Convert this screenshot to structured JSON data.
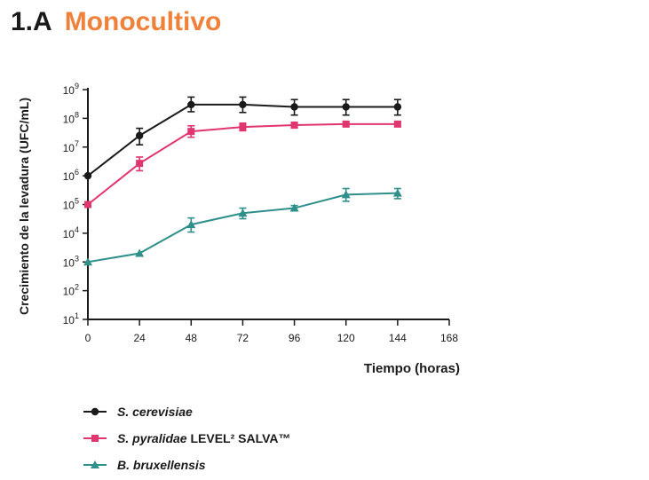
{
  "header": {
    "number": "1.A",
    "title": "Monocultivo"
  },
  "chart_data": {
    "type": "line",
    "ylabel": "Crecimiento de la levadura (UFC/mL)",
    "xlabel": "Tiempo (horas)",
    "y_scale": "log10",
    "ylim": [
      10,
      1000000000
    ],
    "xlim": [
      0,
      168
    ],
    "x_ticks": [
      "0",
      "24",
      "48",
      "72",
      "96",
      "120",
      "144",
      "168"
    ],
    "y_ticks": [
      {
        "base": "10",
        "exp": "1"
      },
      {
        "base": "10",
        "exp": "2"
      },
      {
        "base": "10",
        "exp": "3"
      },
      {
        "base": "10",
        "exp": "4"
      },
      {
        "base": "10",
        "exp": "5"
      },
      {
        "base": "10",
        "exp": "6"
      },
      {
        "base": "10",
        "exp": "7"
      },
      {
        "base": "10",
        "exp": "8"
      },
      {
        "base": "10",
        "exp": "9"
      }
    ],
    "series": [
      {
        "name_italic": "S. cerevisiae",
        "name_rest": "",
        "color": "#1a1a1a",
        "marker": "circle",
        "x": [
          0,
          24,
          48,
          72,
          96,
          120,
          144
        ],
        "y": [
          1000000,
          25000000,
          300000000,
          300000000,
          250000000,
          250000000,
          250000000
        ],
        "err_low": [
          1000000,
          12000000,
          170000000,
          160000000,
          130000000,
          130000000,
          130000000
        ],
        "err_high": [
          1000000,
          45000000,
          550000000,
          550000000,
          450000000,
          450000000,
          450000000
        ]
      },
      {
        "name_italic": "S. pyralidae",
        "name_rest": " LEVEL² SALVA™",
        "color": "#e0356e",
        "marker": "square",
        "x": [
          0,
          24,
          48,
          72,
          96,
          120,
          144
        ],
        "y": [
          100000,
          2700000,
          35000000,
          50000000,
          58000000,
          63000000,
          63000000
        ],
        "err_low": [
          100000,
          1500000,
          22000000,
          37000000,
          46000000,
          52000000,
          52000000
        ],
        "err_high": [
          100000,
          4500000,
          55000000,
          68000000,
          72000000,
          76000000,
          76000000
        ]
      },
      {
        "name_italic": "B. bruxellensis",
        "name_rest": "",
        "color": "#2f8f8a",
        "marker": "triangle",
        "x": [
          0,
          24,
          48,
          72,
          96,
          120,
          144
        ],
        "y": [
          1000,
          2000,
          20000,
          50000,
          75000,
          220000,
          250000
        ],
        "err_low": [
          1000,
          2000,
          11000,
          32000,
          60000,
          130000,
          160000
        ],
        "err_high": [
          1000,
          2000,
          34000,
          75000,
          92000,
          360000,
          360000
        ]
      }
    ]
  }
}
